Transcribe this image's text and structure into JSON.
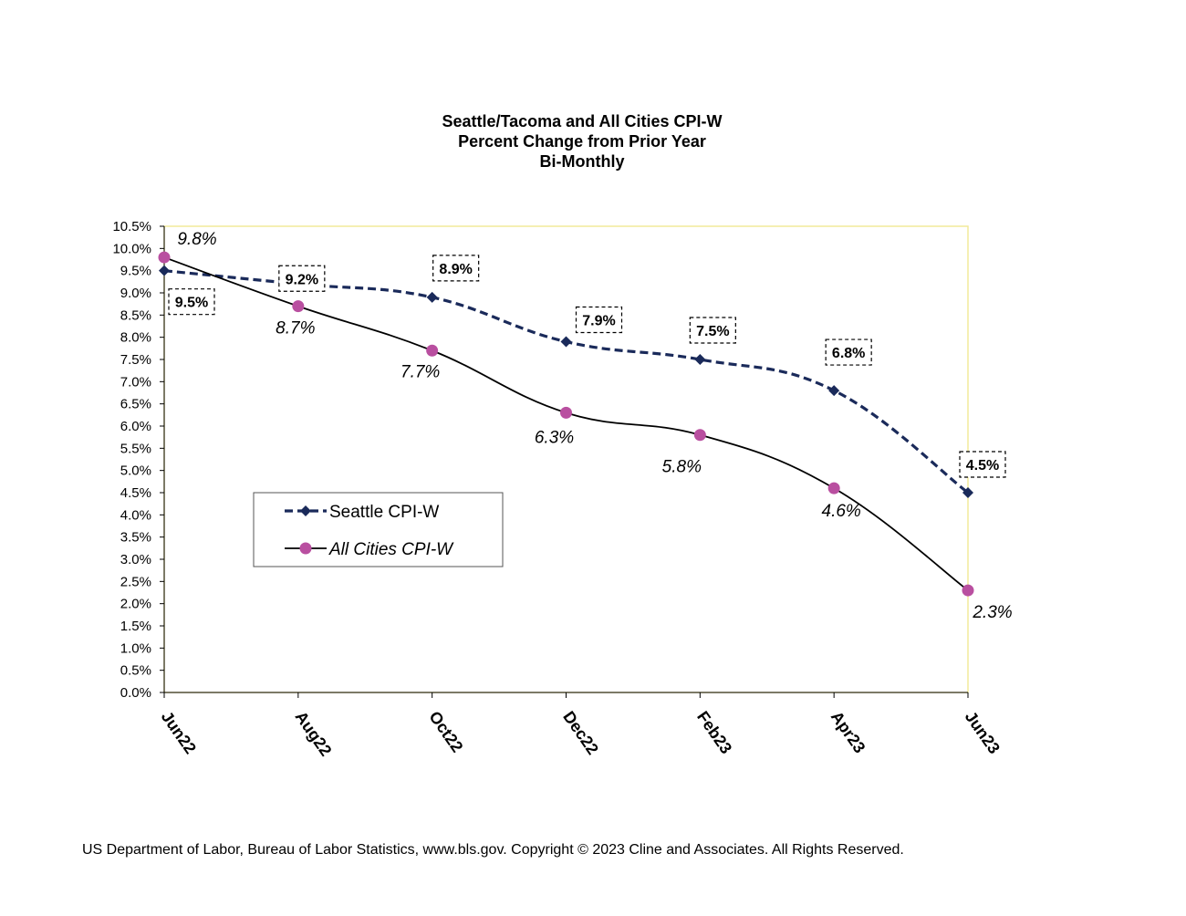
{
  "chart_data": {
    "type": "line",
    "title": [
      "Seattle/Tacoma and All Cities CPI-W",
      "Percent Change from Prior Year",
      "Bi-Monthly"
    ],
    "categories": [
      "Jun22",
      "Aug22",
      "Oct22",
      "Dec22",
      "Feb23",
      "Apr23",
      "Jun23"
    ],
    "ylim": [
      0,
      10.5
    ],
    "ytick_step": 0.5,
    "ytick_labels": [
      "0.0%",
      "0.5%",
      "1.0%",
      "1.5%",
      "2.0%",
      "2.5%",
      "3.0%",
      "3.5%",
      "4.0%",
      "4.5%",
      "5.0%",
      "5.5%",
      "6.0%",
      "6.5%",
      "7.0%",
      "7.5%",
      "8.0%",
      "8.5%",
      "9.0%",
      "9.5%",
      "10.0%",
      "10.5%"
    ],
    "series": [
      {
        "name": "Seattle CPI-W",
        "values": [
          9.5,
          9.2,
          8.9,
          7.9,
          7.5,
          6.8,
          4.5
        ],
        "labels": [
          "9.5%",
          "9.2%",
          "8.9%",
          "7.9%",
          "7.5%",
          "6.8%",
          "4.5%"
        ],
        "color": "#1a2a5a",
        "line_style": "dashed",
        "marker": "diamond",
        "label_style": "boxed"
      },
      {
        "name": "All Cities CPI-W",
        "values": [
          9.8,
          8.7,
          7.7,
          6.3,
          5.8,
          4.6,
          2.3
        ],
        "labels": [
          "9.8%",
          "8.7%",
          "7.7%",
          "6.3%",
          "5.8%",
          "4.6%",
          "2.3%"
        ],
        "color": "#000000",
        "marker_color": "#b94fa0",
        "line_style": "solid",
        "marker": "circle",
        "label_style": "italic"
      }
    ],
    "legend_position": "lower-left",
    "plot_border_color": "#f2ea9a"
  },
  "source": "US Department of Labor, Bureau of Labor Statistics, www.bls.gov.   Copyright © 2023 Cline and Associates.  All Rights Reserved."
}
